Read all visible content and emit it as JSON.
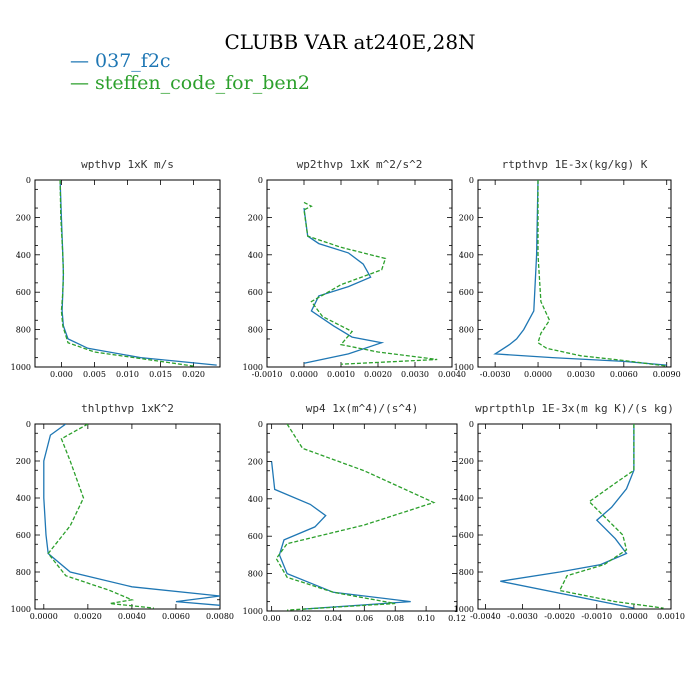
{
  "figure": {
    "title": "CLUBB VAR at240E,28N",
    "legend": [
      {
        "label": "— 037_f2c",
        "color": "#1f77b4"
      },
      {
        "label": "— steffen_code_for_ben2",
        "color": "#2ca02c"
      }
    ]
  },
  "chart_data": [
    {
      "type": "line",
      "title": "wpthvp  1xK m/s",
      "xlim": [
        -0.004,
        0.024
      ],
      "ylim": [
        1000,
        0
      ],
      "xticks": [
        0.0,
        0.005,
        0.01,
        0.015,
        0.02
      ],
      "xtick_labels": [
        "0.000",
        "0.005",
        "0.010",
        "0.015",
        "0.020"
      ],
      "yticks": [
        0,
        200,
        400,
        600,
        800,
        1000
      ],
      "ytick_labels": [
        "0",
        "200",
        "400",
        "600",
        "800",
        "1000"
      ],
      "series": [
        {
          "name": "037_f2c",
          "color": "#1f77b4",
          "dash": "",
          "x": [
            -0.0002,
            0.0,
            0.0002,
            0.0003,
            0.0002,
            0.0001,
            0.0003,
            0.001,
            0.004,
            0.012,
            0.0235
          ],
          "y": [
            0,
            200,
            400,
            500,
            600,
            700,
            780,
            850,
            900,
            950,
            990
          ]
        },
        {
          "name": "steffen_code_for_ben2",
          "color": "#2ca02c",
          "dash": "4,2",
          "x": [
            -0.0002,
            -0.0001,
            0.0002,
            0.0003,
            0.0002,
            0.0,
            0.0002,
            0.001,
            0.005,
            0.013,
            0.02
          ],
          "y": [
            0,
            200,
            400,
            500,
            600,
            700,
            780,
            870,
            920,
            960,
            995
          ]
        }
      ]
    },
    {
      "type": "line",
      "title": "wp2thvp  1xK m^2/s^2",
      "xlim": [
        -0.001,
        0.004
      ],
      "ylim": [
        1000,
        0
      ],
      "xticks": [
        -0.001,
        0.0,
        0.001,
        0.002,
        0.003,
        0.004
      ],
      "xtick_labels": [
        "-0.0010",
        "0.0000",
        "0.0010",
        "0.0020",
        "0.0030",
        "0.0040"
      ],
      "yticks": [
        0,
        200,
        400,
        600,
        800,
        1000
      ],
      "ytick_labels": [
        "0",
        "200",
        "400",
        "600",
        "800",
        "1000"
      ],
      "series": [
        {
          "name": "037_f2c",
          "color": "#1f77b4",
          "dash": "",
          "x": [
            0.0,
            0.0001,
            0.0004,
            0.0012,
            0.0016,
            0.0018,
            0.0012,
            0.0004,
            0.0002,
            0.0008,
            0.0013,
            0.0021,
            0.0012,
            0.0
          ],
          "y": [
            150,
            300,
            340,
            390,
            450,
            520,
            570,
            620,
            700,
            780,
            840,
            870,
            930,
            980
          ]
        },
        {
          "name": "steffen_code_for_ben2",
          "color": "#2ca02c",
          "dash": "4,2",
          "x": [
            0.0,
            0.0002,
            0.0,
            0.0001,
            0.001,
            0.0022,
            0.0021,
            0.001,
            0.0002,
            0.0005,
            0.0013,
            0.001,
            0.002,
            0.0036,
            0.001
          ],
          "y": [
            120,
            140,
            160,
            300,
            360,
            420,
            480,
            560,
            650,
            730,
            810,
            880,
            920,
            960,
            985
          ]
        }
      ]
    },
    {
      "type": "line",
      "title": "rtpthvp  1E-3x(kg/kg) K",
      "xlim": [
        -0.0042,
        0.0093
      ],
      "ylim": [
        1000,
        0
      ],
      "xticks": [
        -0.003,
        0.0,
        0.003,
        0.006,
        0.009
      ],
      "xtick_labels": [
        "-0.0030",
        "0.0000",
        "0.0030",
        "0.0060",
        "0.0090"
      ],
      "yticks": [
        0,
        200,
        400,
        600,
        800,
        1000
      ],
      "ytick_labels": [
        "0",
        "200",
        "400",
        "600",
        "800",
        "1000"
      ],
      "series": [
        {
          "name": "037_f2c",
          "color": "#1f77b4",
          "dash": "",
          "x": [
            0.0,
            -0.0001,
            -0.0003,
            -0.001,
            -0.0015,
            -0.002,
            -0.003,
            0.001,
            0.006,
            0.009
          ],
          "y": [
            0,
            400,
            700,
            800,
            850,
            880,
            930,
            950,
            970,
            990
          ]
        },
        {
          "name": "steffen_code_for_ben2",
          "color": "#2ca02c",
          "dash": "4,2",
          "x": [
            0.0,
            0.0,
            0.0002,
            0.0008,
            0.0002,
            0.0,
            0.0006,
            0.003,
            0.006,
            0.009
          ],
          "y": [
            0,
            400,
            650,
            750,
            820,
            870,
            900,
            940,
            965,
            995
          ]
        }
      ]
    },
    {
      "type": "line",
      "title": "thlpthvp  1xK^2",
      "xlim": [
        -0.0004,
        0.008
      ],
      "ylim": [
        1000,
        0
      ],
      "xticks": [
        0.0,
        0.002,
        0.004,
        0.006,
        0.008
      ],
      "xtick_labels": [
        "0.0000",
        "0.0020",
        "0.0040",
        "0.0060",
        "0.0080"
      ],
      "yticks": [
        0,
        200,
        400,
        600,
        800,
        1000
      ],
      "ytick_labels": [
        "0",
        "200",
        "400",
        "600",
        "800",
        "1000"
      ],
      "series": [
        {
          "name": "037_f2c",
          "color": "#1f77b4",
          "dash": "",
          "x": [
            0.001,
            0.0003,
            0.0,
            0.0,
            0.0001,
            0.0002,
            0.0012,
            0.004,
            0.008,
            0.006,
            0.008
          ],
          "y": [
            0,
            60,
            200,
            400,
            600,
            700,
            800,
            880,
            930,
            960,
            980
          ]
        },
        {
          "name": "steffen_code_for_ben2",
          "color": "#2ca02c",
          "dash": "4,2",
          "x": [
            0.002,
            0.0008,
            0.0012,
            0.0018,
            0.0012,
            0.0002,
            0.001,
            0.003,
            0.004,
            0.003,
            0.005
          ],
          "y": [
            0,
            80,
            200,
            400,
            550,
            700,
            820,
            900,
            950,
            970,
            995
          ]
        }
      ]
    },
    {
      "type": "line",
      "title": "wp4  1x(m^4)/(s^4)",
      "xlim": [
        -0.003,
        0.12
      ],
      "ylim": [
        1000,
        0
      ],
      "xticks": [
        0.0,
        0.02,
        0.04,
        0.06,
        0.08,
        0.1,
        0.12
      ],
      "xtick_labels": [
        "0.00",
        "0.02",
        "0.04",
        "0.06",
        "0.08",
        "0.10",
        "0.12"
      ],
      "yticks": [
        0,
        200,
        400,
        600,
        800,
        1000
      ],
      "ytick_labels": [
        "0",
        "200",
        "400",
        "600",
        "800",
        "1000"
      ],
      "series": [
        {
          "name": "037_f2c",
          "color": "#1f77b4",
          "dash": "",
          "x": [
            0.0,
            0.002,
            0.025,
            0.035,
            0.028,
            0.008,
            0.005,
            0.01,
            0.04,
            0.09,
            0.02
          ],
          "y": [
            200,
            350,
            430,
            490,
            550,
            620,
            700,
            800,
            900,
            950,
            990
          ]
        },
        {
          "name": "steffen_code_for_ben2",
          "color": "#2ca02c",
          "dash": "4,2",
          "x": [
            0.01,
            0.02,
            0.06,
            0.105,
            0.06,
            0.01,
            0.003,
            0.01,
            0.04,
            0.08,
            0.01
          ],
          "y": [
            0,
            130,
            250,
            420,
            540,
            640,
            720,
            820,
            900,
            960,
            995
          ]
        }
      ]
    },
    {
      "type": "line",
      "title": "wprtpthlp  1E-3x(m kg K)/(s kg)",
      "xlim": [
        -0.0042,
        0.001
      ],
      "ylim": [
        1000,
        0
      ],
      "xticks": [
        -0.004,
        -0.003,
        -0.002,
        -0.001,
        0.0,
        0.001
      ],
      "xtick_labels": [
        "-0.0040",
        "-0.0030",
        "-0.0020",
        "-0.0010",
        "0.0000",
        "0.0010"
      ],
      "yticks": [
        0,
        200,
        400,
        600,
        800,
        1000
      ],
      "ytick_labels": [
        "0",
        "200",
        "400",
        "600",
        "800",
        "1000"
      ],
      "series": [
        {
          "name": "037_f2c",
          "color": "#1f77b4",
          "dash": "",
          "x": [
            0.0,
            0.0,
            -0.0002,
            -0.0006,
            -0.001,
            -0.0005,
            -0.0002,
            -0.0009,
            -0.002,
            -0.0036,
            0.0
          ],
          "y": [
            0,
            250,
            350,
            450,
            520,
            620,
            700,
            760,
            800,
            850,
            995
          ]
        },
        {
          "name": "steffen_code_for_ben2",
          "color": "#2ca02c",
          "dash": "4,2",
          "x": [
            0.0,
            0.0,
            -0.0005,
            -0.0012,
            -0.0008,
            -0.0003,
            -0.0002,
            -0.0008,
            -0.0018,
            -0.002,
            -0.0005,
            0.0008
          ],
          "y": [
            0,
            250,
            320,
            420,
            500,
            600,
            680,
            760,
            820,
            900,
            960,
            995
          ]
        }
      ]
    }
  ]
}
